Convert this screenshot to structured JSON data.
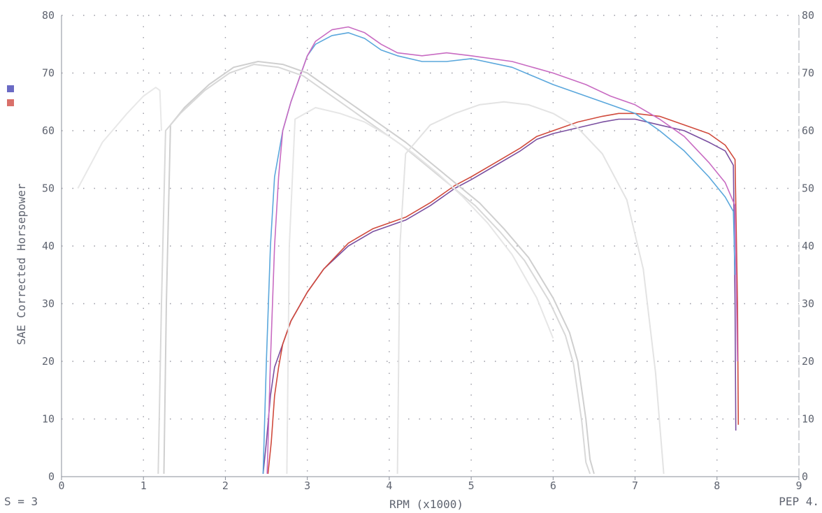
{
  "chart_data": {
    "type": "line",
    "title": "",
    "xlabel": "RPM (x1000)",
    "ylabel": "SAE Corrected Horsepower",
    "xlim": [
      0,
      9
    ],
    "ylim": [
      0,
      80
    ],
    "x_ticks": [
      "0",
      "1",
      "2",
      "3",
      "4",
      "5",
      "6",
      "7",
      "8",
      "9"
    ],
    "y_ticks": [
      "0",
      "10",
      "20",
      "30",
      "40",
      "50",
      "60",
      "70",
      "80"
    ],
    "y_ticks_right": [
      "0",
      "10",
      "20",
      "30",
      "40",
      "50",
      "60",
      "70",
      "80"
    ],
    "grid": true,
    "legend": [
      {
        "color": "#6a6ac4"
      },
      {
        "color": "#d9706a"
      }
    ],
    "series": [
      {
        "color": "#7a4fa0",
        "role": "torque",
        "x": [
          2.46,
          2.5,
          2.55,
          2.6,
          2.7,
          2.8,
          3.0,
          3.2,
          3.5,
          3.8,
          4.0,
          4.2,
          4.5,
          4.8,
          5.0,
          5.3,
          5.6,
          5.8,
          6.0,
          6.3,
          6.6,
          6.8,
          7.0,
          7.3,
          7.6,
          7.9,
          8.1,
          8.2,
          8.22,
          8.23
        ],
        "y": [
          0.5,
          6,
          14,
          19,
          23,
          27,
          32,
          36,
          40,
          42.5,
          43.5,
          44.5,
          47,
          50,
          51.5,
          54,
          56.5,
          58.5,
          59.5,
          60.5,
          61.5,
          62,
          62,
          61,
          60,
          58,
          56.5,
          54,
          30,
          8
        ]
      },
      {
        "color": "#d04a3c",
        "role": "torque",
        "x": [
          2.52,
          2.56,
          2.6,
          2.65,
          2.7,
          2.8,
          3.0,
          3.2,
          3.5,
          3.8,
          4.0,
          4.2,
          4.5,
          4.8,
          5.0,
          5.3,
          5.6,
          5.8,
          6.0,
          6.3,
          6.6,
          6.8,
          7.0,
          7.3,
          7.6,
          7.9,
          8.1,
          8.22,
          8.25,
          8.26
        ],
        "y": [
          0.5,
          6,
          14,
          19,
          23,
          27,
          32,
          36,
          40.5,
          43,
          44,
          45,
          47.5,
          50.5,
          52,
          54.5,
          57,
          59,
          60,
          61.5,
          62.5,
          63,
          63,
          62.5,
          61,
          59.5,
          57.5,
          55,
          30,
          9
        ]
      },
      {
        "color": "#5aa7dc",
        "role": "power",
        "x": [
          2.46,
          2.5,
          2.55,
          2.6,
          2.7,
          2.8,
          2.9,
          3.0,
          3.1,
          3.3,
          3.5,
          3.7,
          3.9,
          4.1,
          4.4,
          4.7,
          5.0,
          5.5,
          6.0,
          6.4,
          6.7,
          7.0,
          7.3,
          7.6,
          7.9,
          8.1,
          8.2,
          8.22
        ],
        "y": [
          0.5,
          20,
          40,
          52,
          60,
          65,
          69,
          73,
          75,
          76.5,
          77,
          76,
          74,
          73,
          72,
          72,
          72.5,
          71,
          68,
          66,
          64.5,
          63,
          60,
          56.5,
          52,
          48.5,
          46,
          35
        ]
      },
      {
        "color": "#c86bc2",
        "role": "power",
        "x": [
          2.51,
          2.55,
          2.6,
          2.65,
          2.7,
          2.8,
          2.9,
          3.0,
          3.1,
          3.3,
          3.5,
          3.7,
          3.9,
          4.1,
          4.4,
          4.7,
          5.0,
          5.5,
          6.0,
          6.4,
          6.7,
          7.0,
          7.3,
          7.6,
          7.9,
          8.1,
          8.22,
          8.25
        ],
        "y": [
          0.5,
          20,
          40,
          52,
          60,
          65,
          69,
          73,
          75.5,
          77.5,
          78,
          77,
          75,
          73.5,
          73,
          73.5,
          73,
          72,
          70,
          68,
          66,
          64.5,
          62,
          59,
          54.5,
          51,
          47,
          20
        ]
      },
      {
        "color": "#cfcfcf",
        "role": "faint baseline",
        "x": [
          1.25,
          1.28,
          1.33,
          1.5,
          1.8,
          2.1,
          2.4,
          2.7,
          3.0,
          3.3,
          3.6,
          3.9,
          4.2,
          4.5,
          4.8,
          5.1,
          5.4,
          5.7,
          6.0,
          6.2,
          6.3,
          6.4,
          6.45,
          6.5
        ],
        "y": [
          0.5,
          30,
          61,
          64,
          68,
          71,
          72,
          71.5,
          70,
          67,
          64,
          61,
          58,
          54.5,
          51,
          47.5,
          43,
          38,
          31,
          25,
          20,
          10,
          3,
          0.5
        ]
      },
      {
        "color": "#d8d8d8",
        "role": "faint baseline",
        "x": [
          1.18,
          1.22,
          1.27,
          1.45,
          1.75,
          2.05,
          2.35,
          2.65,
          2.95,
          3.25,
          3.55,
          3.85,
          4.15,
          4.45,
          4.75,
          5.05,
          5.35,
          5.65,
          5.95,
          6.15,
          6.25,
          6.35,
          6.4,
          6.45
        ],
        "y": [
          0.5,
          30,
          60,
          63,
          67,
          70,
          71.5,
          71,
          69.5,
          66.5,
          63.5,
          60.5,
          57.5,
          54,
          50.5,
          47,
          42.5,
          37.5,
          30.5,
          24.5,
          19.5,
          9.5,
          2.5,
          0.5
        ]
      },
      {
        "color": "#e3e3e3",
        "role": "faint baseline",
        "x": [
          4.1,
          4.13,
          4.2,
          4.5,
          4.8,
          5.1,
          5.4,
          5.7,
          6.0,
          6.3,
          6.6,
          6.9,
          7.1,
          7.25,
          7.35
        ],
        "y": [
          0.5,
          40,
          56,
          61,
          63,
          64.5,
          65,
          64.5,
          63,
          60.5,
          56,
          48,
          36,
          18,
          0.5
        ]
      },
      {
        "color": "#e6e6e6",
        "role": "faint baseline",
        "x": [
          2.75,
          2.78,
          2.85,
          3.1,
          3.4,
          3.7,
          4.0,
          4.3,
          4.6,
          4.9,
          5.2,
          5.5,
          5.8,
          6.0
        ],
        "y": [
          0.5,
          40,
          62,
          64,
          63,
          61.5,
          59,
          56,
          52.5,
          48.5,
          44,
          38.5,
          31,
          24
        ]
      },
      {
        "color": "#e8e8e8",
        "role": "faint baseline",
        "x": [
          0.2,
          0.5,
          0.8,
          1.0,
          1.15,
          1.2,
          1.22
        ],
        "y": [
          50,
          58,
          63,
          66,
          67.5,
          67,
          60
        ]
      }
    ]
  },
  "footer": {
    "smoothing": "S = 3",
    "version": "PEP 4."
  }
}
